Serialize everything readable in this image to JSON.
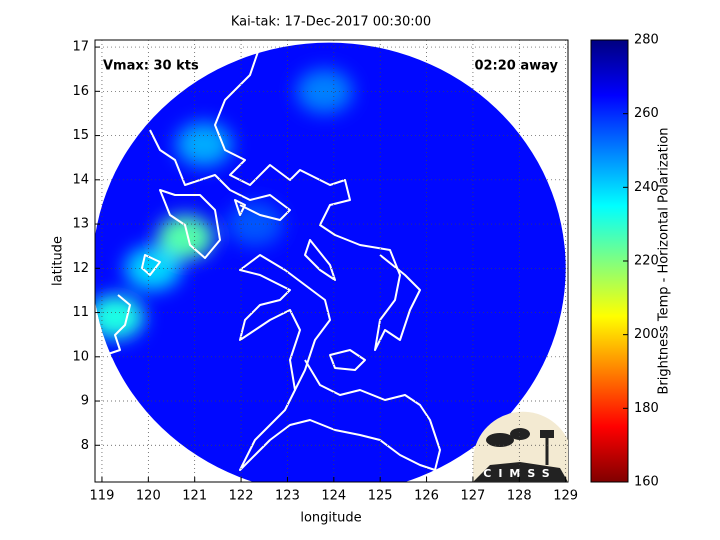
{
  "chart_data": {
    "type": "map",
    "title": "Kai-tak: 17-Dec-2017 00:30:00",
    "x_label": "longitude",
    "y_label": "latitude",
    "colorbar_label": "Brightness Temp - Horizontal Polarization",
    "annotations": [
      "Vmax: 30 kts",
      "02:20 away"
    ],
    "logo_text": "CIMSS",
    "xlim": [
      118.85,
      129.05
    ],
    "xticks": [
      119,
      120,
      121,
      122,
      123,
      124,
      125,
      126,
      127,
      128,
      129
    ],
    "ylim": [
      7.17,
      17.16
    ],
    "yticks": [
      8,
      9,
      10,
      11,
      12,
      13,
      14,
      15,
      16,
      17
    ],
    "clim": [
      160,
      280
    ],
    "cticks": [
      160,
      180,
      200,
      220,
      240,
      260,
      280
    ],
    "colormap": "jet-reversed",
    "grid": true,
    "swath": {
      "lon": 123.9,
      "lat": 12.0,
      "radius": 5.1,
      "value": 264
    },
    "patches": {
      "lon": [
        120.8,
        119.3,
        120.1,
        121.2,
        123.8,
        122.3
      ],
      "lat": [
        12.7,
        10.9,
        12.0,
        14.8,
        16.0,
        13.0
      ],
      "values": [
        225,
        232,
        240,
        245,
        250,
        255
      ]
    }
  }
}
